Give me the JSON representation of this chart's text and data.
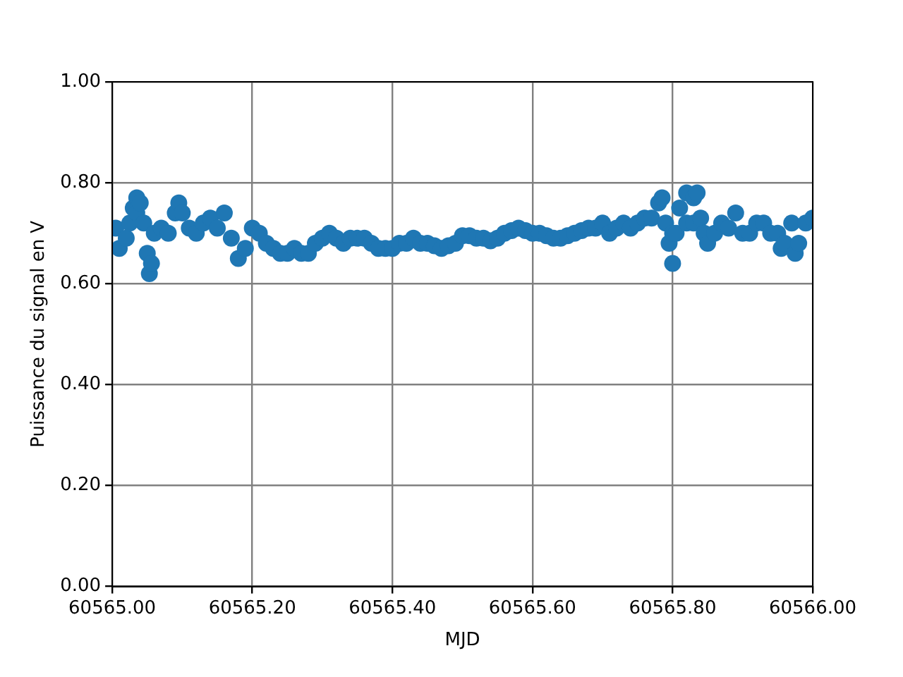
{
  "chart_data": {
    "type": "scatter",
    "xlabel": "MJD",
    "ylabel": "Puissance du signal en V",
    "x": [
      60565.005,
      60565.01,
      60565.02,
      60565.025,
      60565.03,
      60565.035,
      60565.035,
      60565.04,
      60565.045,
      60565.05,
      60565.053,
      60565.056,
      60565.06,
      60565.07,
      60565.08,
      60565.09,
      60565.095,
      60565.1,
      60565.11,
      60565.12,
      60565.13,
      60565.14,
      60565.15,
      60565.16,
      60565.17,
      60565.18,
      60565.19,
      60565.2,
      60565.21,
      60565.22,
      60565.23,
      60565.24,
      60565.25,
      60565.26,
      60565.27,
      60565.28,
      60565.29,
      60565.3,
      60565.31,
      60565.32,
      60565.33,
      60565.34,
      60565.35,
      60565.36,
      60565.37,
      60565.38,
      60565.39,
      60565.4,
      60565.41,
      60565.42,
      60565.43,
      60565.44,
      60565.45,
      60565.46,
      60565.47,
      60565.48,
      60565.49,
      60565.5,
      60565.51,
      60565.52,
      60565.53,
      60565.54,
      60565.55,
      60565.56,
      60565.57,
      60565.58,
      60565.59,
      60565.6,
      60565.61,
      60565.62,
      60565.63,
      60565.64,
      60565.65,
      60565.66,
      60565.67,
      60565.68,
      60565.69,
      60565.7,
      60565.71,
      60565.72,
      60565.73,
      60565.74,
      60565.75,
      60565.76,
      60565.77,
      60565.78,
      60565.785,
      60565.79,
      60565.795,
      60565.8,
      60565.8,
      60565.805,
      60565.81,
      60565.82,
      60565.82,
      60565.83,
      60565.83,
      60565.835,
      60565.84,
      60565.845,
      60565.85,
      60565.86,
      60565.87,
      60565.88,
      60565.89,
      60565.9,
      60565.91,
      60565.92,
      60565.93,
      60565.94,
      60565.95,
      60565.955,
      60565.96,
      60565.97,
      60565.975,
      60565.98,
      60565.99,
      60566.0
    ],
    "values": [
      0.71,
      0.67,
      0.69,
      0.72,
      0.75,
      0.77,
      0.74,
      0.76,
      0.72,
      0.66,
      0.62,
      0.64,
      0.7,
      0.71,
      0.7,
      0.74,
      0.76,
      0.74,
      0.71,
      0.7,
      0.72,
      0.73,
      0.71,
      0.74,
      0.69,
      0.65,
      0.67,
      0.71,
      0.7,
      0.68,
      0.67,
      0.66,
      0.66,
      0.67,
      0.66,
      0.66,
      0.68,
      0.69,
      0.7,
      0.69,
      0.68,
      0.69,
      0.69,
      0.69,
      0.68,
      0.67,
      0.67,
      0.67,
      0.68,
      0.68,
      0.69,
      0.68,
      0.68,
      0.675,
      0.67,
      0.675,
      0.68,
      0.695,
      0.695,
      0.69,
      0.69,
      0.685,
      0.69,
      0.7,
      0.705,
      0.71,
      0.705,
      0.7,
      0.7,
      0.695,
      0.69,
      0.69,
      0.695,
      0.7,
      0.705,
      0.71,
      0.71,
      0.72,
      0.7,
      0.71,
      0.72,
      0.71,
      0.72,
      0.73,
      0.73,
      0.76,
      0.77,
      0.72,
      0.68,
      0.64,
      0.7,
      0.7,
      0.75,
      0.78,
      0.72,
      0.77,
      0.72,
      0.78,
      0.73,
      0.7,
      0.68,
      0.7,
      0.72,
      0.71,
      0.74,
      0.7,
      0.7,
      0.72,
      0.72,
      0.7,
      0.7,
      0.67,
      0.68,
      0.72,
      0.66,
      0.68,
      0.72,
      0.73
    ],
    "color": "#1f77b4",
    "marker": "circle",
    "xlim": [
      60565.0,
      60566.0
    ],
    "xticks": [
      {
        "value": 60565.0,
        "label": "60565.00"
      },
      {
        "value": 60565.2,
        "label": "60565.20"
      },
      {
        "value": 60565.4,
        "label": "60565.40"
      },
      {
        "value": 60565.6,
        "label": "60565.60"
      },
      {
        "value": 60565.8,
        "label": "60565.80"
      },
      {
        "value": 60566.0,
        "label": "60566.00"
      }
    ],
    "ylim": [
      0,
      1
    ],
    "yticks": [
      {
        "value": 0,
        "label": "0.00"
      },
      {
        "value": 0.2,
        "label": "0.20"
      },
      {
        "value": 0.4,
        "label": "0.40"
      },
      {
        "value": 0.6,
        "label": "0.60"
      },
      {
        "value": 0.8,
        "label": "0.80"
      },
      {
        "value": 1,
        "label": "1.00"
      }
    ],
    "grid": true
  }
}
